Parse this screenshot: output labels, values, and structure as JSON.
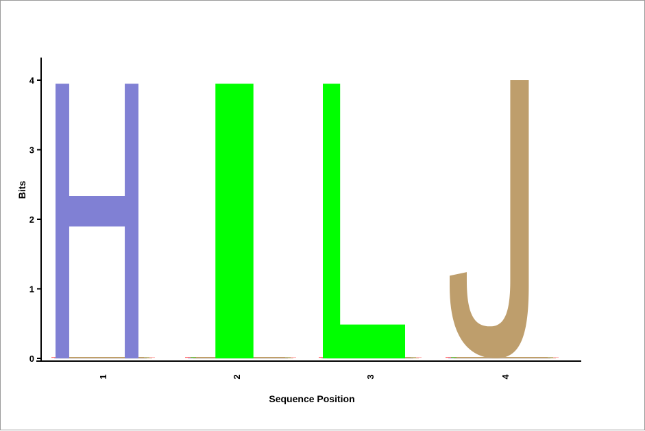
{
  "chart_data": {
    "type": "sequence-logo",
    "xlabel": "Sequence Position",
    "ylabel": "Bits",
    "ylim": [
      0,
      4
    ],
    "yticks": [
      "0",
      "1",
      "2",
      "3",
      "4"
    ],
    "positions": [
      {
        "label": "1",
        "letter": "H",
        "bits": 3.95,
        "color": "#8080D4"
      },
      {
        "label": "2",
        "letter": "I",
        "bits": 3.95,
        "color": "#00FF00"
      },
      {
        "label": "3",
        "letter": "L",
        "bits": 3.95,
        "color": "#00FF00"
      },
      {
        "label": "4",
        "letter": "J",
        "bits": 4.0,
        "color": "#BE9E6C"
      }
    ],
    "minor_letter_colors": [
      "#ff0000",
      "#8080d4",
      "#00ff00",
      "#be9e6c",
      "#ff8080"
    ]
  }
}
